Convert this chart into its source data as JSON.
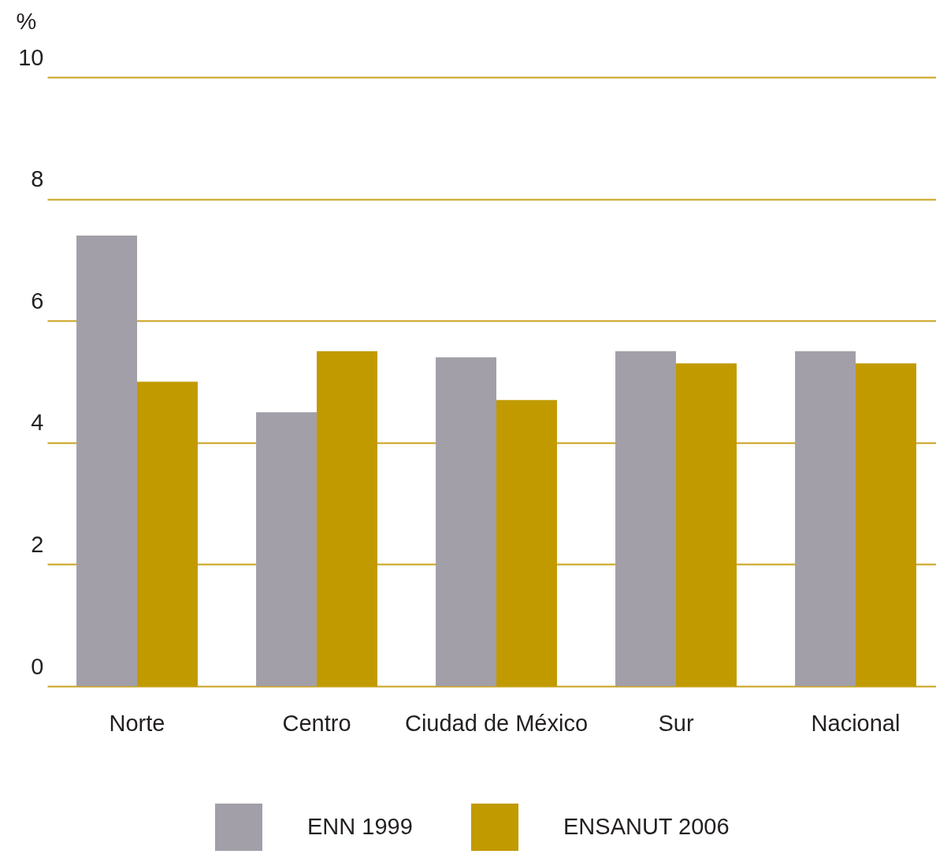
{
  "chart_data": {
    "type": "bar",
    "ylabel": "%",
    "categories": [
      "Norte",
      "Centro",
      "Ciudad de México",
      "Sur",
      "Nacional"
    ],
    "series": [
      {
        "name": "ENN 1999",
        "color": "#a29fa8",
        "values": [
          7.4,
          4.5,
          5.4,
          5.5,
          5.5
        ]
      },
      {
        "name": "ENSANUT 2006",
        "color": "#c19a00",
        "values": [
          5.0,
          5.5,
          4.7,
          5.3,
          5.3
        ]
      }
    ],
    "ylim": [
      0,
      10
    ],
    "yticks": [
      0,
      2,
      4,
      6,
      8,
      10
    ],
    "grid": "y",
    "legend": "bottom"
  }
}
